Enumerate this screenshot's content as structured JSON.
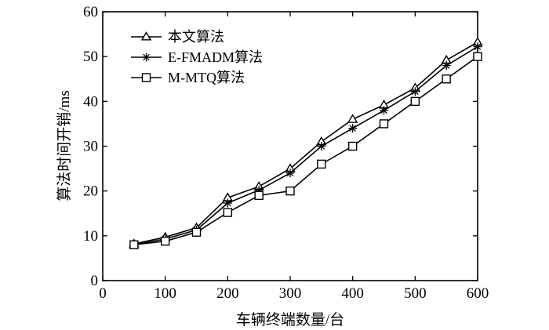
{
  "chart_data": {
    "type": "line",
    "title": "",
    "xlabel": "车辆终端数量/台",
    "ylabel": "算法时间开销/ms",
    "xlim": [
      0,
      600
    ],
    "ylim": [
      0,
      60
    ],
    "xticks": [
      0,
      100,
      200,
      300,
      400,
      500,
      600
    ],
    "yticks": [
      0,
      10,
      20,
      30,
      40,
      50,
      60
    ],
    "grid": false,
    "legend_position": "top-left",
    "x": [
      50,
      100,
      150,
      200,
      250,
      300,
      350,
      400,
      450,
      500,
      550,
      600
    ],
    "series": [
      {
        "name": "本文算法",
        "marker": "triangle",
        "values": [
          8.2,
          9.7,
          11.8,
          18.5,
          21,
          25,
          31,
          36,
          39.2,
          43,
          49.2,
          53.2
        ]
      },
      {
        "name": "E-FMADM算法",
        "marker": "star",
        "values": [
          8.0,
          9.3,
          11.3,
          17.3,
          20.2,
          24,
          30,
          34,
          38,
          42.2,
          48,
          52.2
        ]
      },
      {
        "name": "M-MTQ算法",
        "marker": "square",
        "values": [
          8.0,
          8.8,
          10.8,
          15.2,
          19,
          20,
          26,
          30,
          35,
          40,
          45,
          50
        ]
      }
    ]
  }
}
